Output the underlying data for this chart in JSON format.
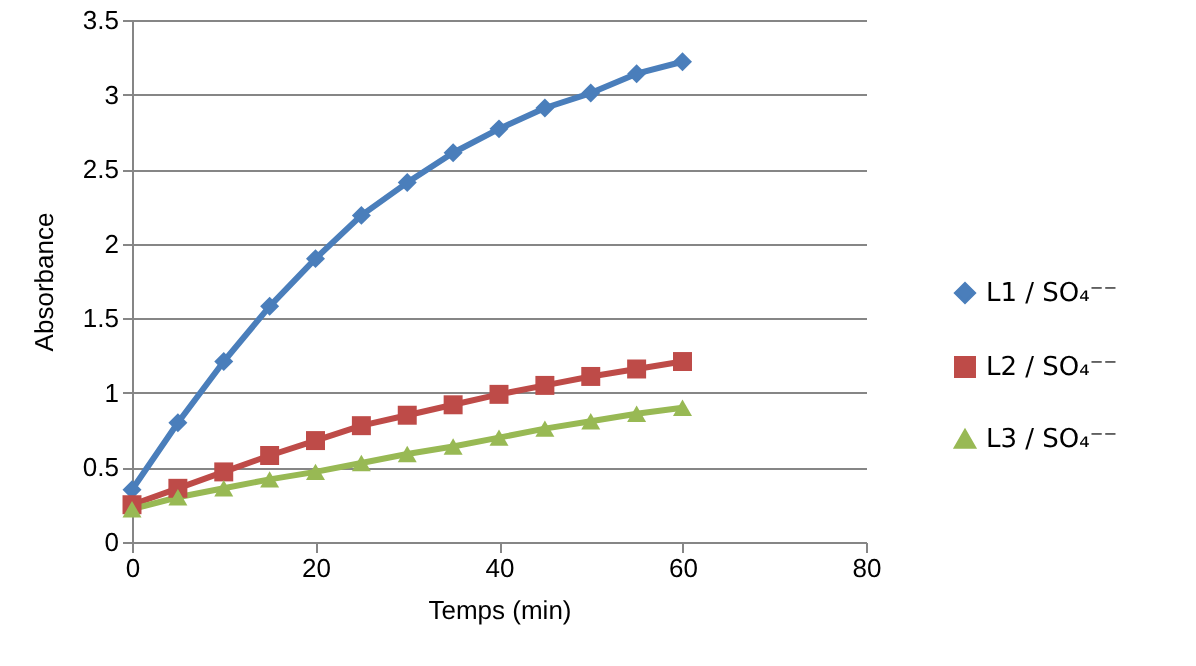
{
  "chart_data": {
    "type": "line",
    "xlabel": "Temps (min)",
    "ylabel": "Absorbance",
    "x": [
      0,
      5,
      10,
      15,
      20,
      25,
      30,
      35,
      40,
      45,
      50,
      55,
      60
    ],
    "series": [
      {
        "name": "L1 / SO₄⁻⁻",
        "color": "#4a7ebb",
        "marker": "diamond",
        "values": [
          0.35,
          0.8,
          1.21,
          1.58,
          1.9,
          2.19,
          2.41,
          2.61,
          2.77,
          2.91,
          3.01,
          3.14,
          3.22
        ]
      },
      {
        "name": "L2 / SO₄⁻⁻",
        "color": "#be4b48",
        "marker": "square",
        "values": [
          0.25,
          0.36,
          0.47,
          0.58,
          0.68,
          0.78,
          0.85,
          0.92,
          0.99,
          1.05,
          1.11,
          1.16,
          1.21
        ]
      },
      {
        "name": "L3 / SO₄⁻⁻",
        "color": "#98b954",
        "marker": "triangle",
        "values": [
          0.22,
          0.3,
          0.36,
          0.42,
          0.47,
          0.53,
          0.59,
          0.64,
          0.7,
          0.76,
          0.81,
          0.86,
          0.9
        ]
      }
    ],
    "xlim": [
      0,
      80
    ],
    "xticks": [
      0,
      20,
      40,
      60,
      80
    ],
    "ylim": [
      0,
      3.5
    ],
    "yticks": [
      0,
      0.5,
      1,
      1.5,
      2,
      2.5,
      3,
      3.5
    ],
    "grid": "y",
    "legend": "right"
  }
}
